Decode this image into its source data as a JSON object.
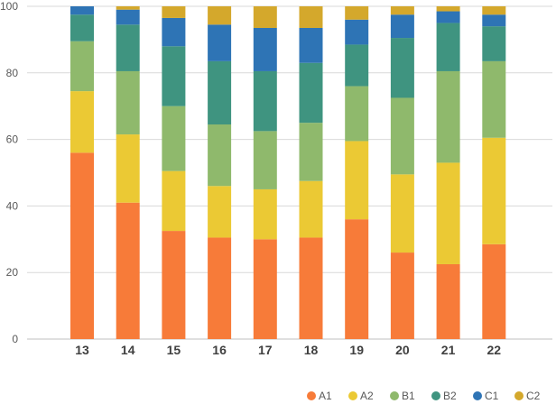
{
  "chart_data": {
    "type": "bar",
    "stacked": true,
    "categories": [
      "13",
      "14",
      "15",
      "16",
      "17",
      "18",
      "19",
      "20",
      "21",
      "22"
    ],
    "ylim": [
      0,
      100
    ],
    "yticks": [
      "0",
      "20",
      "40",
      "60",
      "80",
      "100"
    ],
    "grid": "horizontal",
    "legend_position": "bottom-right",
    "series": [
      {
        "name": "A1",
        "color": "#f77b39",
        "values": [
          56,
          41,
          32.5,
          30.5,
          30,
          30.5,
          36,
          26,
          22.5,
          28.5
        ]
      },
      {
        "name": "A2",
        "color": "#ebc934",
        "values": [
          18.5,
          20.5,
          18,
          15.5,
          15,
          17,
          23.5,
          23.5,
          30.5,
          32
        ]
      },
      {
        "name": "B1",
        "color": "#8fb96c",
        "values": [
          15,
          19,
          19.5,
          18.5,
          17.5,
          17.5,
          16.5,
          23,
          27.5,
          23
        ]
      },
      {
        "name": "B2",
        "color": "#3f9480",
        "values": [
          8,
          14,
          18,
          19,
          18,
          18,
          12.5,
          18,
          14.5,
          10.5
        ]
      },
      {
        "name": "C1",
        "color": "#2e74b5",
        "values": [
          2.5,
          4.5,
          8.5,
          11,
          13,
          10.5,
          7.5,
          7,
          3.5,
          3.5
        ]
      },
      {
        "name": "C2",
        "color": "#d4a82c",
        "values": [
          0,
          1,
          3.5,
          5.5,
          6.5,
          6.5,
          4,
          2.5,
          1.5,
          2.5
        ]
      }
    ]
  }
}
